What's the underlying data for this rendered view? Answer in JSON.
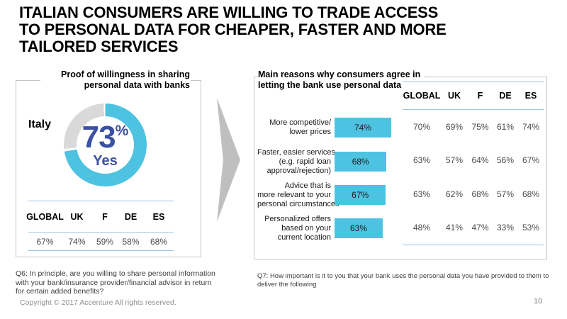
{
  "slide": {
    "title": "ITALIAN CONSUMERS ARE WILLING TO TRADE ACCESS\nTO PERSONAL DATA FOR CHEAPER, FASTER AND MORE\nTAILORED SERVICES",
    "page_number": "10",
    "copyright": "Copyright © 2017 Accenture  All rights reserved."
  },
  "colors": {
    "accent_cyan": "#4DC3E1",
    "donut_remainder": "#D9D9D9",
    "percent_blue": "#3C51A3",
    "table_line_blue": "#9DC3E6",
    "box_border_gray": "#C4C4C4",
    "arrow_gray": "#BFBFBF"
  },
  "left_panel": {
    "title": "Proof of willingness in sharing\npersonal data with banks",
    "country_label": "Italy",
    "donut": {
      "value": 73,
      "value_label": "73",
      "percent_sign": "%",
      "answer_label": "Yes"
    },
    "table": {
      "headers": [
        "GLOBAL",
        "UK",
        "F",
        "DE",
        "ES"
      ],
      "values": [
        "67%",
        "74%",
        "59%",
        "58%",
        "68%"
      ]
    },
    "footnote": "Q6: In principle, are you willing to share personal information\nwith your bank/insurance provider/financial advisor in return\nfor certain added benefits?"
  },
  "right_panel": {
    "title": "Main reasons why consumers agree in\nletting the bank use personal data",
    "bars": [
      {
        "label": "More competitive/\nlower prices",
        "value": 74,
        "value_label": "74%"
      },
      {
        "label": "Faster, easier services\n(e.g. rapid loan\napproval/rejection)",
        "value": 68,
        "value_label": "68%"
      },
      {
        "label": "Advice that is\nmore relevant to your\npersonal circumstances",
        "value": 67,
        "value_label": "67%"
      },
      {
        "label": "Personalized offers\nbased on your\ncurrent location",
        "value": 63,
        "value_label": "63%"
      }
    ],
    "table": {
      "headers": [
        "GLOBAL",
        "UK",
        "F",
        "DE",
        "ES"
      ],
      "rows": [
        [
          "70%",
          "69%",
          "75%",
          "61%",
          "74%"
        ],
        [
          "63%",
          "57%",
          "64%",
          "56%",
          "67%"
        ],
        [
          "63%",
          "62%",
          "68%",
          "57%",
          "68%"
        ],
        [
          "48%",
          "41%",
          "47%",
          "33%",
          "53%"
        ]
      ]
    },
    "footnote": "Q7: How important is it to you that your bank uses the personal data you have provided to them to\ndeliver the following"
  },
  "chart_data": [
    {
      "type": "pie",
      "subtype": "donut",
      "title": "Proof of willingness in sharing personal data with banks",
      "annotation": "Italy",
      "labels": [
        "Yes",
        "Remainder"
      ],
      "values": [
        73,
        27
      ],
      "center_label": "73% Yes",
      "colors": [
        "#4DC3E1",
        "#D9D9D9"
      ]
    },
    {
      "type": "table",
      "title": "Willingness to share personal data by market",
      "columns": [
        "GLOBAL",
        "UK",
        "F",
        "DE",
        "ES"
      ],
      "rows": [
        [
          "67%",
          "74%",
          "59%",
          "58%",
          "68%"
        ]
      ]
    },
    {
      "type": "bar",
      "orientation": "horizontal",
      "title": "Main reasons why consumers agree in letting the bank use personal data",
      "categories": [
        "More competitive/ lower prices",
        "Faster, easier services (e.g. rapid loan approval/rejection)",
        "Advice that is more relevant to your personal circumstances",
        "Personalized offers based on your current location"
      ],
      "values": [
        74,
        68,
        67,
        63
      ],
      "unit": "%",
      "xlim": [
        0,
        100
      ],
      "bar_color": "#4DC3E1",
      "data_labels": [
        "74%",
        "68%",
        "67%",
        "63%"
      ]
    },
    {
      "type": "table",
      "title": "Main reasons by market",
      "columns": [
        "GLOBAL",
        "UK",
        "F",
        "DE",
        "ES"
      ],
      "rows": [
        [
          "70%",
          "69%",
          "75%",
          "61%",
          "74%"
        ],
        [
          "63%",
          "57%",
          "64%",
          "56%",
          "67%"
        ],
        [
          "63%",
          "62%",
          "68%",
          "57%",
          "68%"
        ],
        [
          "48%",
          "41%",
          "47%",
          "33%",
          "53%"
        ]
      ]
    }
  ]
}
